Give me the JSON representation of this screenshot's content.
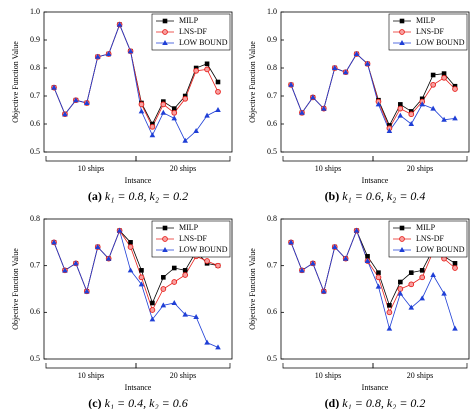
{
  "chart_data": [
    {
      "type": "line",
      "caption_label": "(a)",
      "caption": "k₁ = 0.8, k₂ = 0.2",
      "ylabel": "Objective Function Value",
      "xlabel": "Intsance",
      "groups": [
        "10 ships",
        "20 ships"
      ],
      "categories": [
        null,
        null,
        null,
        null,
        null,
        null,
        null,
        null,
        null,
        null,
        null,
        null,
        null,
        null,
        null,
        null
      ],
      "ylim": [
        0.5,
        1.0
      ],
      "yticks": [
        0.5,
        0.6,
        0.7,
        0.8,
        0.9,
        {
          "value": 1.0,
          "label": "1.0"
        }
      ],
      "legend": "upper right",
      "series": [
        {
          "name": "MILP",
          "color": "#000000",
          "marker": "square",
          "values": [
            0.73,
            0.635,
            0.685,
            0.675,
            0.84,
            0.85,
            0.955,
            0.86,
            0.675,
            0.6,
            0.68,
            0.655,
            0.7,
            0.8,
            0.815,
            0.75
          ]
        },
        {
          "name": "LNS-DF",
          "color": "#e8201c",
          "marker": "circle",
          "values": [
            0.73,
            0.635,
            0.685,
            0.675,
            0.84,
            0.85,
            0.955,
            0.86,
            0.67,
            0.59,
            0.67,
            0.64,
            0.69,
            0.79,
            0.795,
            0.715
          ]
        },
        {
          "name": "LOW BOUND",
          "color": "#1f3fd6",
          "marker": "triangle",
          "values": [
            0.73,
            0.635,
            0.685,
            0.675,
            0.84,
            0.85,
            0.955,
            0.86,
            0.645,
            0.56,
            0.64,
            0.62,
            0.54,
            0.575,
            0.63,
            0.65
          ]
        }
      ]
    },
    {
      "type": "line",
      "caption_label": "(b)",
      "caption": "k₁ = 0.6, k₂ = 0.4",
      "ylabel": "Objective Function Value",
      "xlabel": "Intsance",
      "groups": [
        "10 ships",
        "20 ships"
      ],
      "categories": [
        null,
        null,
        null,
        null,
        null,
        null,
        null,
        null,
        null,
        null,
        null,
        null,
        null,
        null,
        null,
        null
      ],
      "ylim": [
        0.5,
        1.0
      ],
      "yticks": [
        0.5,
        0.6,
        0.7,
        0.8,
        0.9,
        {
          "value": 1.0,
          "label": "1.0"
        }
      ],
      "legend": "upper right",
      "series": [
        {
          "name": "MILP",
          "color": "#000000",
          "marker": "square",
          "values": [
            0.74,
            0.64,
            0.695,
            0.655,
            0.8,
            0.785,
            0.85,
            0.815,
            0.685,
            0.595,
            0.67,
            0.645,
            0.69,
            0.775,
            0.78,
            0.735
          ]
        },
        {
          "name": "LNS-DF",
          "color": "#e8201c",
          "marker": "circle",
          "values": [
            0.74,
            0.64,
            0.695,
            0.655,
            0.8,
            0.785,
            0.85,
            0.815,
            0.68,
            0.585,
            0.655,
            0.635,
            0.68,
            0.74,
            0.765,
            0.725
          ]
        },
        {
          "name": "LOW BOUND",
          "color": "#1f3fd6",
          "marker": "triangle",
          "values": [
            0.74,
            0.64,
            0.695,
            0.655,
            0.8,
            0.785,
            0.85,
            0.815,
            0.67,
            0.575,
            0.63,
            0.6,
            0.67,
            0.655,
            0.615,
            0.62
          ]
        }
      ]
    },
    {
      "type": "line",
      "caption_label": "(c)",
      "caption": "k₁ = 0.4, k₂ = 0.6",
      "ylabel": "Objective Function Value",
      "xlabel": "Intsance",
      "groups": [
        "10 ships",
        "20 ships"
      ],
      "categories": [
        null,
        null,
        null,
        null,
        null,
        null,
        null,
        null,
        null,
        null,
        null,
        null,
        null,
        null,
        null,
        null
      ],
      "ylim": [
        0.5,
        0.8
      ],
      "yticks": [
        0.5,
        0.6,
        0.7,
        0.8
      ],
      "legend": "upper right",
      "series": [
        {
          "name": "MILP",
          "color": "#000000",
          "marker": "square",
          "values": [
            0.75,
            0.69,
            0.705,
            0.645,
            0.74,
            0.715,
            0.775,
            0.75,
            0.69,
            0.62,
            0.675,
            0.695,
            0.69,
            0.73,
            0.705,
            0.7
          ]
        },
        {
          "name": "LNS-DF",
          "color": "#e8201c",
          "marker": "circle",
          "values": [
            0.75,
            0.69,
            0.705,
            0.645,
            0.74,
            0.715,
            0.775,
            0.74,
            0.675,
            0.605,
            0.65,
            0.665,
            0.68,
            0.72,
            0.71,
            0.7
          ]
        },
        {
          "name": "LOW BOUND",
          "color": "#1f3fd6",
          "marker": "triangle",
          "values": [
            0.75,
            0.69,
            0.705,
            0.645,
            0.74,
            0.715,
            0.775,
            0.69,
            0.66,
            0.585,
            0.615,
            0.62,
            0.595,
            0.59,
            0.535,
            0.525
          ]
        }
      ]
    },
    {
      "type": "line",
      "caption_label": "(d)",
      "caption": "k₁ = 0.8, k₂ = 0.2",
      "ylabel": "Objective Function Value",
      "xlabel": "Intsance",
      "groups": [
        "10 ships",
        "20 ships"
      ],
      "categories": [
        null,
        null,
        null,
        null,
        null,
        null,
        null,
        null,
        null,
        null,
        null,
        null,
        null,
        null,
        null,
        null
      ],
      "ylim": [
        0.5,
        0.8
      ],
      "yticks": [
        0.5,
        0.6,
        0.7,
        0.8
      ],
      "legend": "upper right",
      "series": [
        {
          "name": "MILP",
          "color": "#000000",
          "marker": "square",
          "values": [
            0.75,
            0.69,
            0.705,
            0.645,
            0.74,
            0.715,
            0.775,
            0.72,
            0.685,
            0.615,
            0.665,
            0.685,
            0.69,
            0.735,
            0.72,
            0.705
          ]
        },
        {
          "name": "LNS-DF",
          "color": "#e8201c",
          "marker": "circle",
          "values": [
            0.75,
            0.69,
            0.705,
            0.645,
            0.74,
            0.715,
            0.775,
            0.71,
            0.675,
            0.6,
            0.65,
            0.66,
            0.675,
            0.73,
            0.715,
            0.695
          ]
        },
        {
          "name": "LOW BOUND",
          "color": "#1f3fd6",
          "marker": "triangle",
          "values": [
            0.75,
            0.69,
            0.705,
            0.645,
            0.74,
            0.715,
            0.775,
            0.71,
            0.655,
            0.565,
            0.64,
            0.61,
            0.63,
            0.68,
            0.64,
            0.565
          ]
        }
      ]
    }
  ]
}
